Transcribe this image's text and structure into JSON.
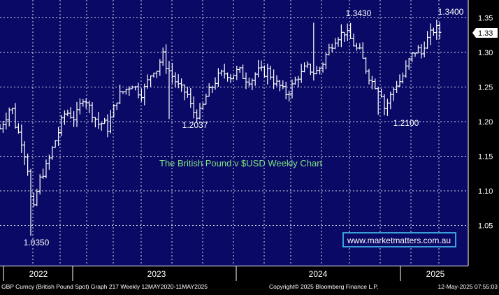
{
  "footer": {
    "left": "GBP Curncy (British Pound Spot) Graph 217  Weekly 12MAY2020-11MAY2025",
    "center": "Copyright© 2025 Bloomberg Finance L.P.",
    "right": "12-May-2025 07:55:03"
  },
  "colors": {
    "plot_bg": "#0a0a66",
    "grid": "#ffffff",
    "bars": "#ffffff",
    "title": "#7ee07e",
    "watermark_text": "#ffffff",
    "watermark_border": "#4ad0ff",
    "last_price_bg": "#ffffff",
    "last_price_text": "#000000"
  },
  "chart_data": {
    "type": "ohlc",
    "title": "The British Pound v $USD Weekly Chart",
    "watermark": "www.marketmatters.com.au",
    "frequency": "Weekly",
    "ylim": [
      1.0,
      1.36
    ],
    "yticks": [
      "1.35",
      "1.30",
      "1.25",
      "1.20",
      "1.15",
      "1.10",
      "1.05"
    ],
    "ytick_values": [
      1.35,
      1.3,
      1.25,
      1.2,
      1.15,
      1.1,
      1.05
    ],
    "xlabels": [
      "2022",
      "2023",
      "2024",
      "2025"
    ],
    "last_price": "1.33",
    "last_value": 1.33,
    "grid": true,
    "annotations": [
      {
        "label": "1.0350",
        "week": 46,
        "value": 1.035
      },
      {
        "label": "1.2037",
        "week": 240,
        "value": 1.2037
      },
      {
        "label": "1.3430",
        "week": 448,
        "value": 1.343
      },
      {
        "label": "1.2100",
        "week": 542,
        "value": 1.21
      },
      {
        "label": "1.3400",
        "week": 640,
        "value": 1.34
      }
    ],
    "close_path": [
      [
        0,
        1.19
      ],
      [
        10,
        1.21
      ],
      [
        16,
        1.225
      ],
      [
        22,
        1.195
      ],
      [
        30,
        1.175
      ],
      [
        36,
        1.15
      ],
      [
        42,
        1.12
      ],
      [
        46,
        1.06
      ],
      [
        52,
        1.095
      ],
      [
        58,
        1.12
      ],
      [
        64,
        1.13
      ],
      [
        70,
        1.145
      ],
      [
        76,
        1.165
      ],
      [
        82,
        1.18
      ],
      [
        88,
        1.2
      ],
      [
        94,
        1.215
      ],
      [
        100,
        1.21
      ],
      [
        106,
        1.205
      ],
      [
        112,
        1.215
      ],
      [
        118,
        1.235
      ],
      [
        124,
        1.23
      ],
      [
        130,
        1.215
      ],
      [
        136,
        1.205
      ],
      [
        142,
        1.195
      ],
      [
        148,
        1.2
      ],
      [
        154,
        1.19
      ],
      [
        160,
        1.21
      ],
      [
        166,
        1.23
      ],
      [
        172,
        1.24
      ],
      [
        178,
        1.245
      ],
      [
        184,
        1.25
      ],
      [
        190,
        1.255
      ],
      [
        196,
        1.245
      ],
      [
        202,
        1.24
      ],
      [
        208,
        1.25
      ],
      [
        214,
        1.265
      ],
      [
        220,
        1.275
      ],
      [
        226,
        1.275
      ],
      [
        232,
        1.3
      ],
      [
        238,
        1.28
      ],
      [
        244,
        1.27
      ],
      [
        250,
        1.26
      ],
      [
        256,
        1.25
      ],
      [
        262,
        1.245
      ],
      [
        268,
        1.24
      ],
      [
        272,
        1.225
      ],
      [
        276,
        1.215
      ],
      [
        282,
        1.21
      ],
      [
        288,
        1.215
      ],
      [
        294,
        1.235
      ],
      [
        300,
        1.245
      ],
      [
        306,
        1.255
      ],
      [
        312,
        1.265
      ],
      [
        318,
        1.27
      ],
      [
        324,
        1.27
      ],
      [
        330,
        1.265
      ],
      [
        336,
        1.27
      ],
      [
        342,
        1.275
      ],
      [
        348,
        1.265
      ],
      [
        354,
        1.26
      ],
      [
        360,
        1.26
      ],
      [
        366,
        1.27
      ],
      [
        372,
        1.275
      ],
      [
        378,
        1.27
      ],
      [
        384,
        1.275
      ],
      [
        390,
        1.26
      ],
      [
        396,
        1.255
      ],
      [
        402,
        1.25
      ],
      [
        408,
        1.24
      ],
      [
        414,
        1.245
      ],
      [
        420,
        1.255
      ],
      [
        426,
        1.265
      ],
      [
        432,
        1.27
      ],
      [
        438,
        1.28
      ],
      [
        444,
        1.275
      ],
      [
        450,
        1.27
      ],
      [
        456,
        1.275
      ],
      [
        462,
        1.285
      ],
      [
        468,
        1.3
      ],
      [
        474,
        1.31
      ],
      [
        480,
        1.32
      ],
      [
        486,
        1.325
      ],
      [
        492,
        1.33
      ],
      [
        498,
        1.325
      ],
      [
        504,
        1.315
      ],
      [
        510,
        1.305
      ],
      [
        516,
        1.3
      ],
      [
        522,
        1.28
      ],
      [
        528,
        1.265
      ],
      [
        534,
        1.255
      ],
      [
        540,
        1.25
      ],
      [
        546,
        1.24
      ],
      [
        550,
        1.22
      ],
      [
        556,
        1.23
      ],
      [
        562,
        1.245
      ],
      [
        568,
        1.255
      ],
      [
        574,
        1.26
      ],
      [
        580,
        1.275
      ],
      [
        586,
        1.29
      ],
      [
        592,
        1.3
      ],
      [
        598,
        1.305
      ],
      [
        602,
        1.295
      ],
      [
        606,
        1.31
      ],
      [
        612,
        1.32
      ],
      [
        618,
        1.33
      ],
      [
        624,
        1.335
      ],
      [
        628,
        1.33
      ],
      [
        632,
        1.33
      ]
    ]
  }
}
